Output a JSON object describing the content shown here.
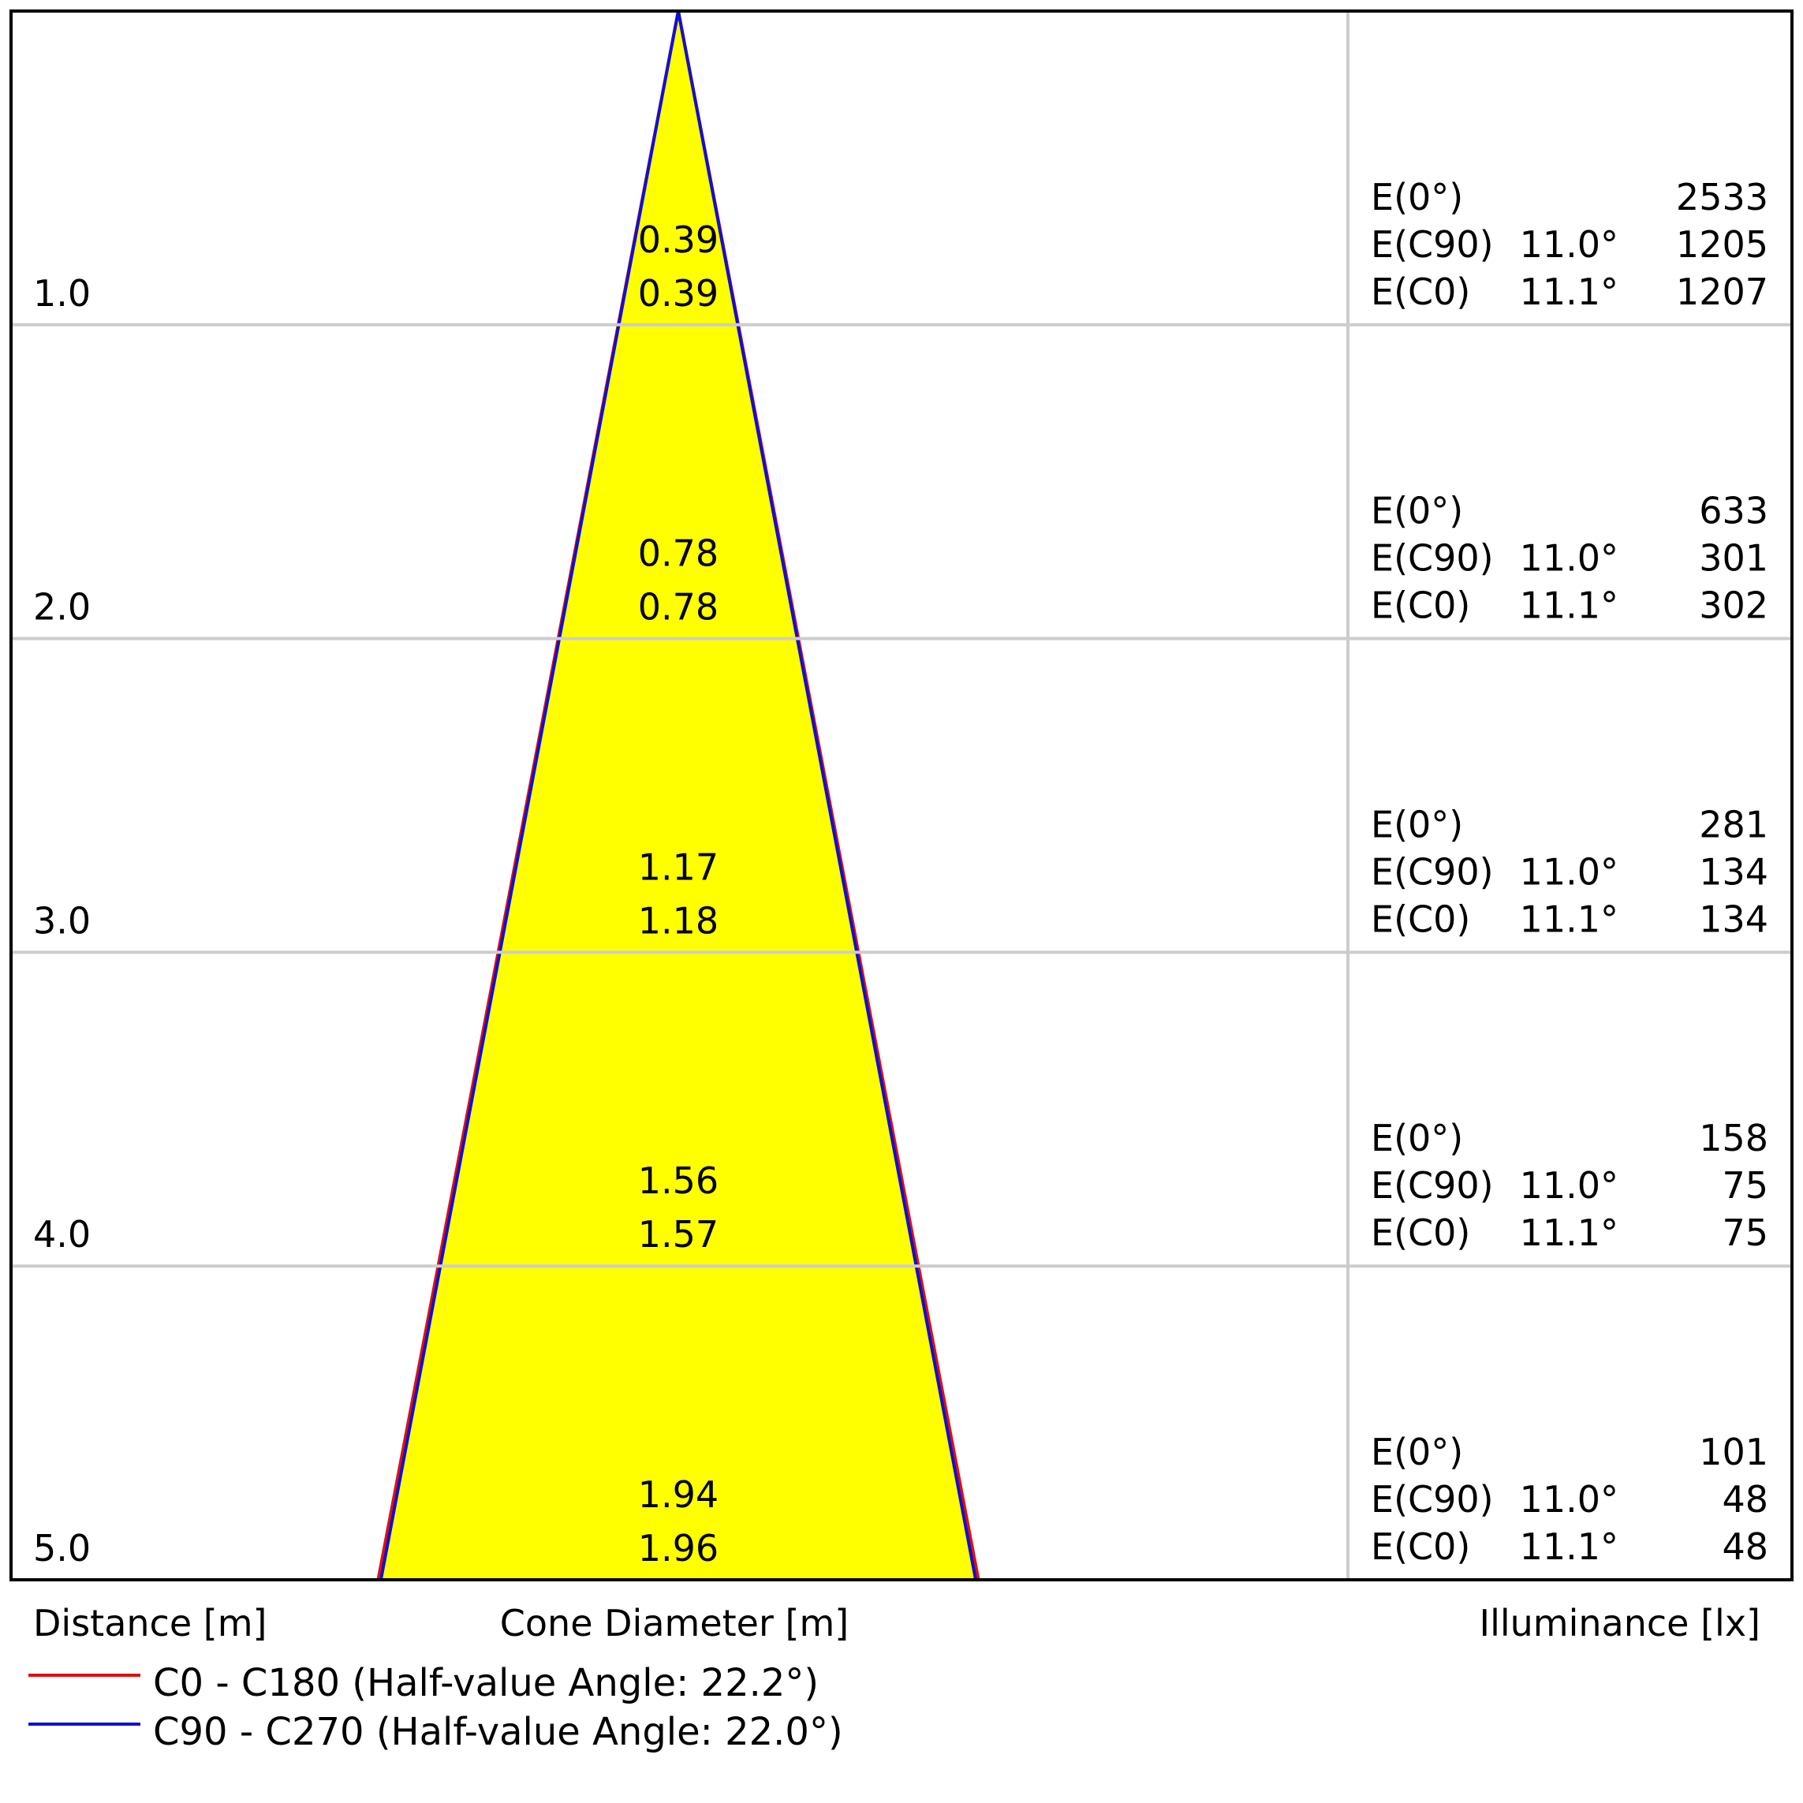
{
  "chart_data": {
    "type": "cone-diagram",
    "xlabel_distance": "Distance [m]",
    "xlabel_cone": "Cone Diameter [m]",
    "xlabel_illuminance": "Illuminance [lx]",
    "distance_max": 5.0,
    "rows": [
      {
        "distance": "1.0",
        "d_c90": "0.39",
        "d_c0": "0.39",
        "e0": "2533",
        "e_c90": "1205",
        "e_c0": "1207"
      },
      {
        "distance": "2.0",
        "d_c90": "0.78",
        "d_c0": "0.78",
        "e0": "633",
        "e_c90": "301",
        "e_c0": "302"
      },
      {
        "distance": "3.0",
        "d_c90": "1.17",
        "d_c0": "1.18",
        "e0": "281",
        "e_c90": "134",
        "e_c0": "134"
      },
      {
        "distance": "4.0",
        "d_c90": "1.56",
        "d_c0": "1.57",
        "e0": "158",
        "e_c90": "75",
        "e_c0": "75"
      },
      {
        "distance": "5.0",
        "d_c90": "1.94",
        "d_c0": "1.96",
        "e0": "101",
        "e_c90": "48",
        "e_c0": "48"
      }
    ],
    "e_labels": {
      "e0": "E(0°)",
      "e_c90": "E(C90)",
      "e_c0": "E(C0)"
    },
    "angle_c90": "11.0°",
    "angle_c0": "11.1°",
    "series": [
      {
        "name": "C0 - C180 (Half-value Angle: 22.2°)",
        "color": "#e01010",
        "half_angle_deg": 22.2
      },
      {
        "name": "C90 - C270 (Half-value Angle: 22.0°)",
        "color": "#1010d0",
        "half_angle_deg": 22.0
      }
    ],
    "fill_color": "#ffff00",
    "grid": true
  }
}
